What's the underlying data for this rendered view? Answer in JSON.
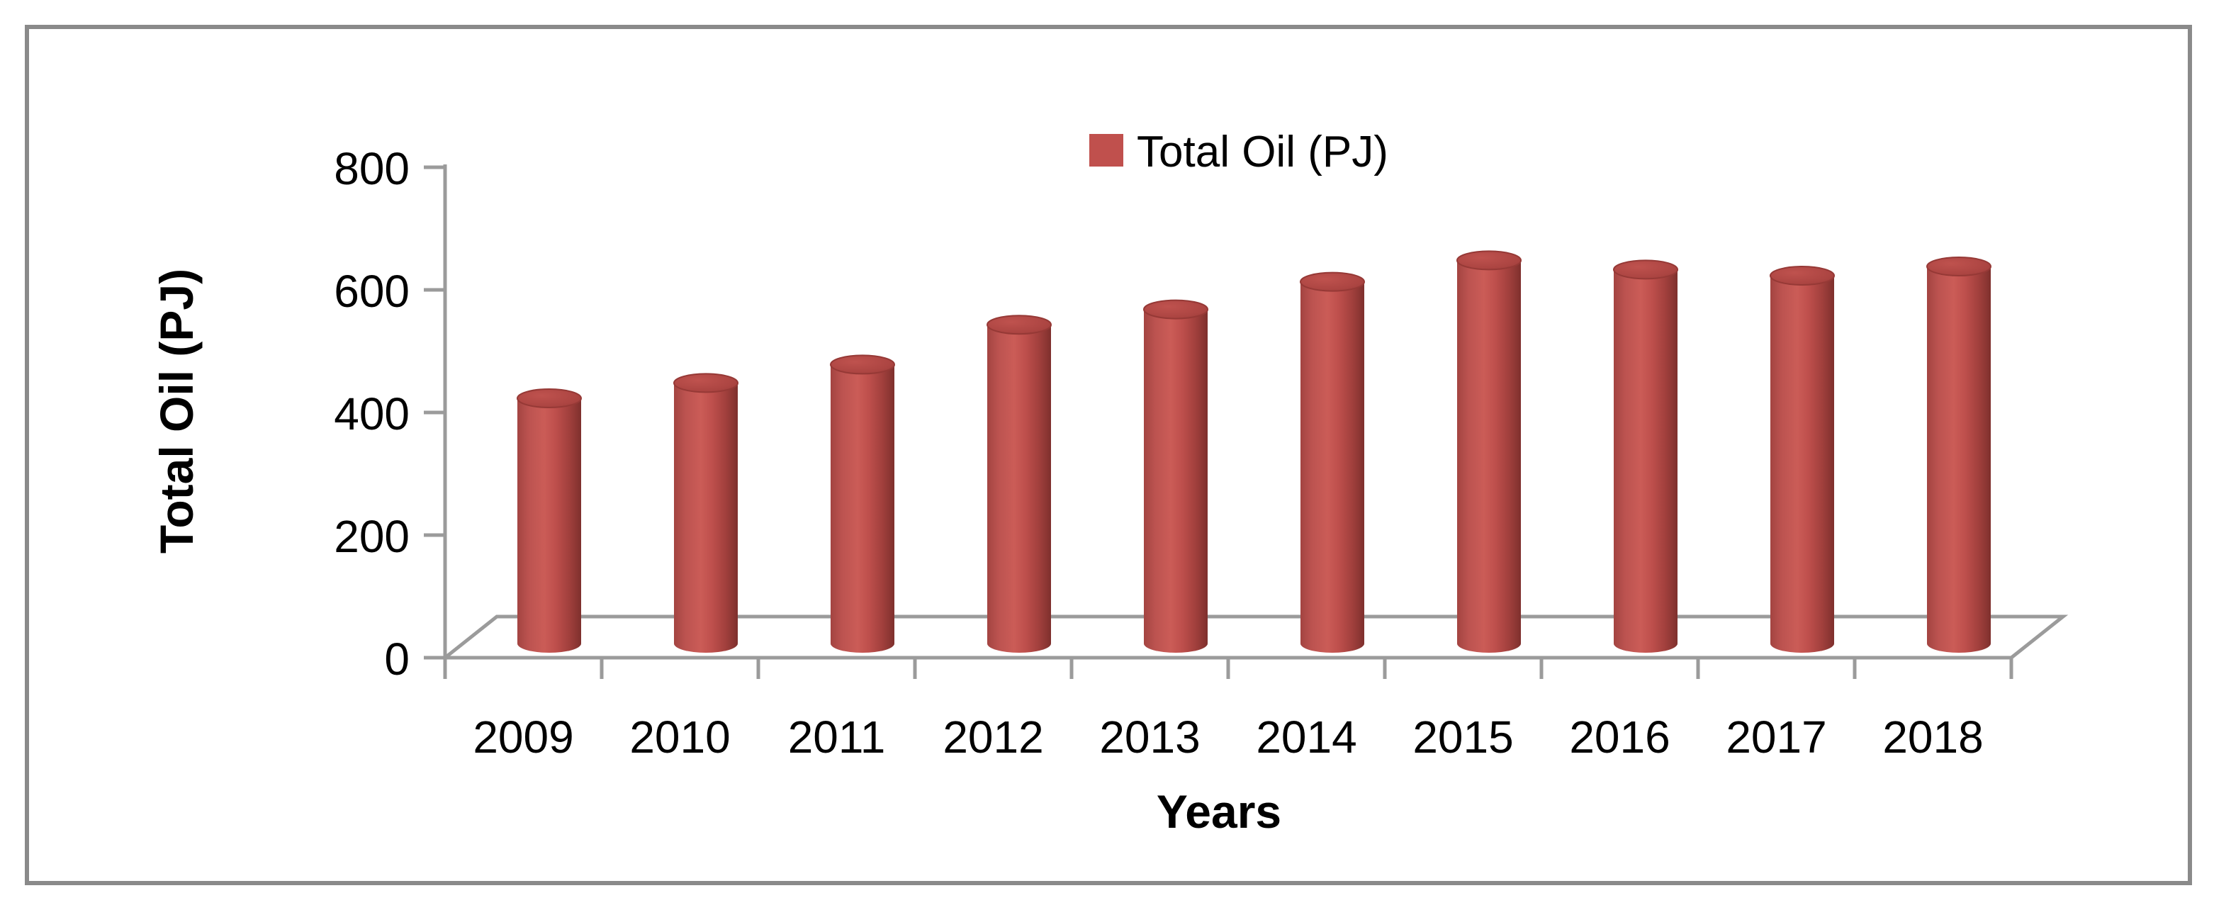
{
  "window": {
    "background": "#FFFFFF",
    "frame_color": "#8A8A8A"
  },
  "legend": {
    "label": "Total Oil (PJ)",
    "swatch_color": "#C0504D",
    "position": "top-center"
  },
  "chart_data": {
    "type": "bar",
    "subtype": "3d-cylinder-column",
    "title": "",
    "xlabel": "Years",
    "ylabel": "Total Oil (PJ)",
    "categories": [
      "2009",
      "2010",
      "2011",
      "2012",
      "2013",
      "2014",
      "2015",
      "2016",
      "2017",
      "2018"
    ],
    "series": [
      {
        "name": "Total Oil (PJ)",
        "values": [
          400,
          425,
          455,
          520,
          545,
          590,
          625,
          610,
          600,
          615
        ]
      }
    ],
    "ylim": [
      0,
      800
    ],
    "yticks": [
      0,
      200,
      400,
      600,
      800
    ],
    "grid": false,
    "legend_position": "top-center",
    "bar_color": "#C0504D",
    "bar_highlight": "#CB5C57",
    "bar_shadow": "#7E302D",
    "cap_color": "#AC4542",
    "axis_color": "#9B9B9B",
    "text_color": "#000000"
  }
}
